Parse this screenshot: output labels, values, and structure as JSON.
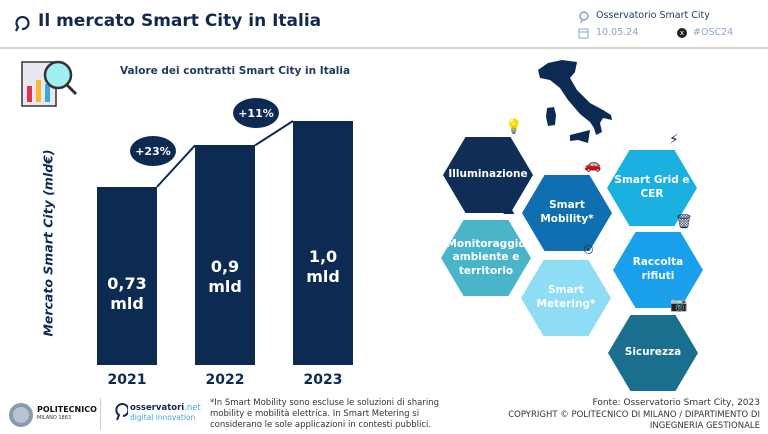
{
  "header": {
    "title": "Il mercato Smart City in Italia",
    "observatory": "Osservatorio Smart City",
    "date": "10.05.24",
    "hashtag": "#OSC24"
  },
  "chart_data": {
    "type": "bar",
    "title": "Valore dei contratti Smart City in Italia",
    "ylabel": "Mercato Smart City (mld€)",
    "categories": [
      "2021",
      "2022",
      "2023"
    ],
    "values": [
      0.73,
      0.9,
      1.0
    ],
    "data_labels": [
      "0,73 mld",
      "0,9 mld",
      "1,0 mld"
    ],
    "growth_labels": [
      "+23%",
      "+11%"
    ],
    "ylim": [
      0,
      1.0
    ],
    "color": "#0d2b52"
  },
  "hexagons": [
    {
      "label": "Illuminazione",
      "color": "#0f2d55",
      "icon": "street-lamp-icon"
    },
    {
      "label": "Smart Mobility*",
      "color": "#0f6fb0",
      "icon": "car-icon"
    },
    {
      "label": "Smart Grid e CER",
      "color": "#1ab0e0",
      "icon": "power-tower-icon"
    },
    {
      "label": "Monitoraggio ambiente e territorio",
      "color": "#4ab5c9",
      "icon": "mountain-icon"
    },
    {
      "label": "Smart Metering*",
      "color": "#8fdcf5",
      "icon": "meter-icon"
    },
    {
      "label": "Raccolta rifiuti",
      "color": "#1a9fea",
      "icon": "trash-icon"
    },
    {
      "label": "Sicurezza",
      "color": "#1a6e8e",
      "icon": "camera-icon"
    }
  ],
  "footer": {
    "polimi": "POLITECNICO",
    "polimi_sub": "MILANO 1863",
    "osservatori": "osservatori",
    "osservatori_net": ".net",
    "osservatori_sub": "digital innovation",
    "note": "*In Smart Mobility sono escluse le soluzioni di sharing mobility e mobilità elettrica. In Smart Metering si considerano le sole applicazioni in contesti pubblici.",
    "source": "Fonte: Osservatorio Smart City, 2023",
    "copyright": "COPYRIGHT © POLITECNICO DI MILANO / DIPARTIMENTO DI INGEGNERIA GESTIONALE"
  }
}
